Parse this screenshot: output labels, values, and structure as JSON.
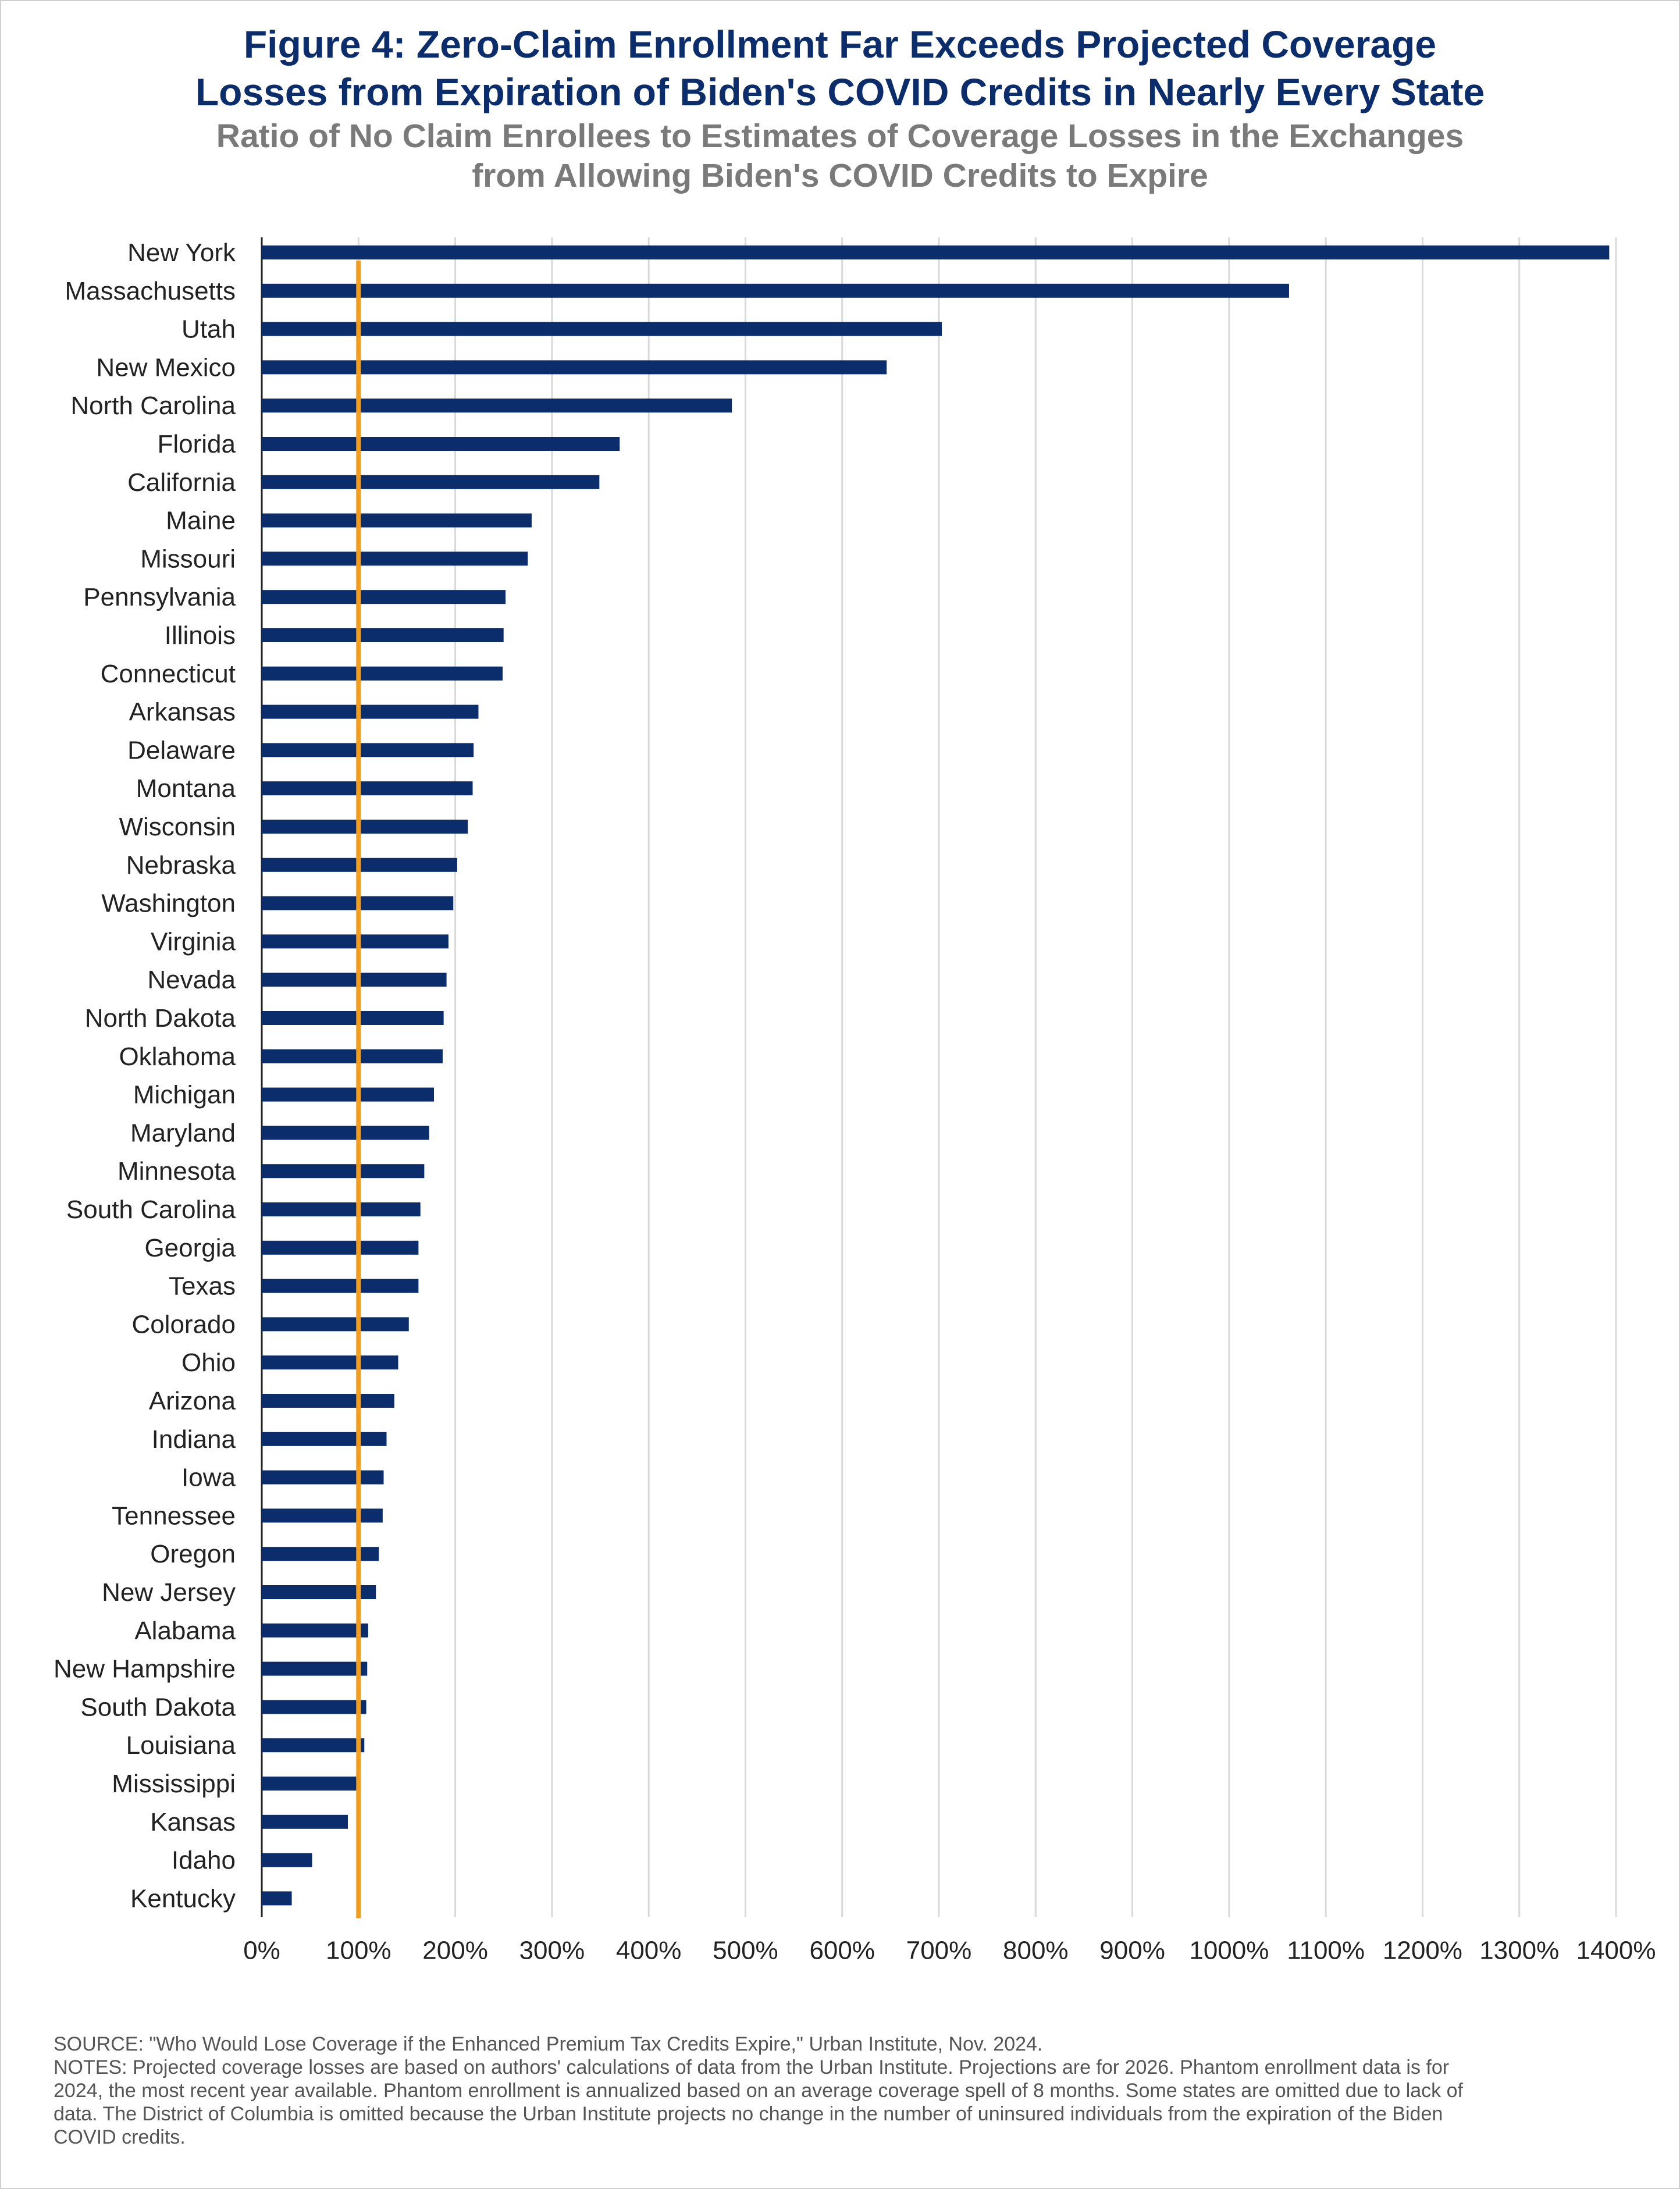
{
  "title": {
    "line1": "Figure 4: Zero-Claim Enrollment Far Exceeds Projected Coverage",
    "line2": "Losses from Expiration of Biden's COVID Credits in Nearly Every State"
  },
  "subtitle": {
    "line1": "Ratio of No Claim Enrollees to Estimates of Coverage Losses in the Exchanges",
    "line2": "from Allowing Biden's COVID Credits to Expire"
  },
  "chart_data": {
    "type": "bar",
    "orientation": "horizontal",
    "categories": [
      "New York",
      "Massachusetts",
      "Utah",
      "New Mexico",
      "North Carolina",
      "Florida",
      "California",
      "Maine",
      "Missouri",
      "Pennsylvania",
      "Illinois",
      "Connecticut",
      "Arkansas",
      "Delaware",
      "Montana",
      "Wisconsin",
      "Nebraska",
      "Washington",
      "Virginia",
      "Nevada",
      "North Dakota",
      "Oklahoma",
      "Michigan",
      "Maryland",
      "Minnesota",
      "South Carolina",
      "Georgia",
      "Texas",
      "Colorado",
      "Ohio",
      "Arizona",
      "Indiana",
      "Iowa",
      "Tennessee",
      "Oregon",
      "New Jersey",
      "Alabama",
      "New Hampshire",
      "South Dakota",
      "Louisiana",
      "Mississippi",
      "Kansas",
      "Idaho",
      "Kentucky"
    ],
    "values": [
      1393,
      1062,
      703,
      646,
      486,
      370,
      349,
      279,
      275,
      252,
      250,
      249,
      224,
      219,
      218,
      213,
      202,
      198,
      193,
      191,
      188,
      187,
      178,
      173,
      168,
      164,
      162,
      162,
      152,
      141,
      137,
      129,
      126,
      125,
      121,
      118,
      110,
      109,
      108,
      106,
      102,
      89,
      52,
      31
    ],
    "unit": "%",
    "xlim": [
      0,
      1400
    ],
    "xticks": [
      "0%",
      "100%",
      "200%",
      "300%",
      "400%",
      "500%",
      "600%",
      "700%",
      "800%",
      "900%",
      "1000%",
      "1100%",
      "1200%",
      "1300%",
      "1400%"
    ],
    "reference_line": {
      "value": 100,
      "color": "#f39c1e"
    },
    "bar_color": "#0b2d6b",
    "grid": true,
    "xlabel": "",
    "ylabel": ""
  },
  "source": {
    "line1": "SOURCE: \"Who Would Lose Coverage if the Enhanced Premium Tax Credits Expire,\" Urban Institute, Nov. 2024.",
    "line2": "NOTES: Projected coverage losses are based on authors' calculations of data from the Urban Institute. Projections are for 2026. Phantom enrollment data is for",
    "line3": "2024, the most recent year available. Phantom enrollment is annualized based on an average coverage spell of 8 months. Some states are omitted due to lack of",
    "line4": "data. The District of Columbia is omitted because the Urban Institute projects no change in the number of uninsured individuals from the expiration of the Biden",
    "line5": "COVID credits."
  }
}
